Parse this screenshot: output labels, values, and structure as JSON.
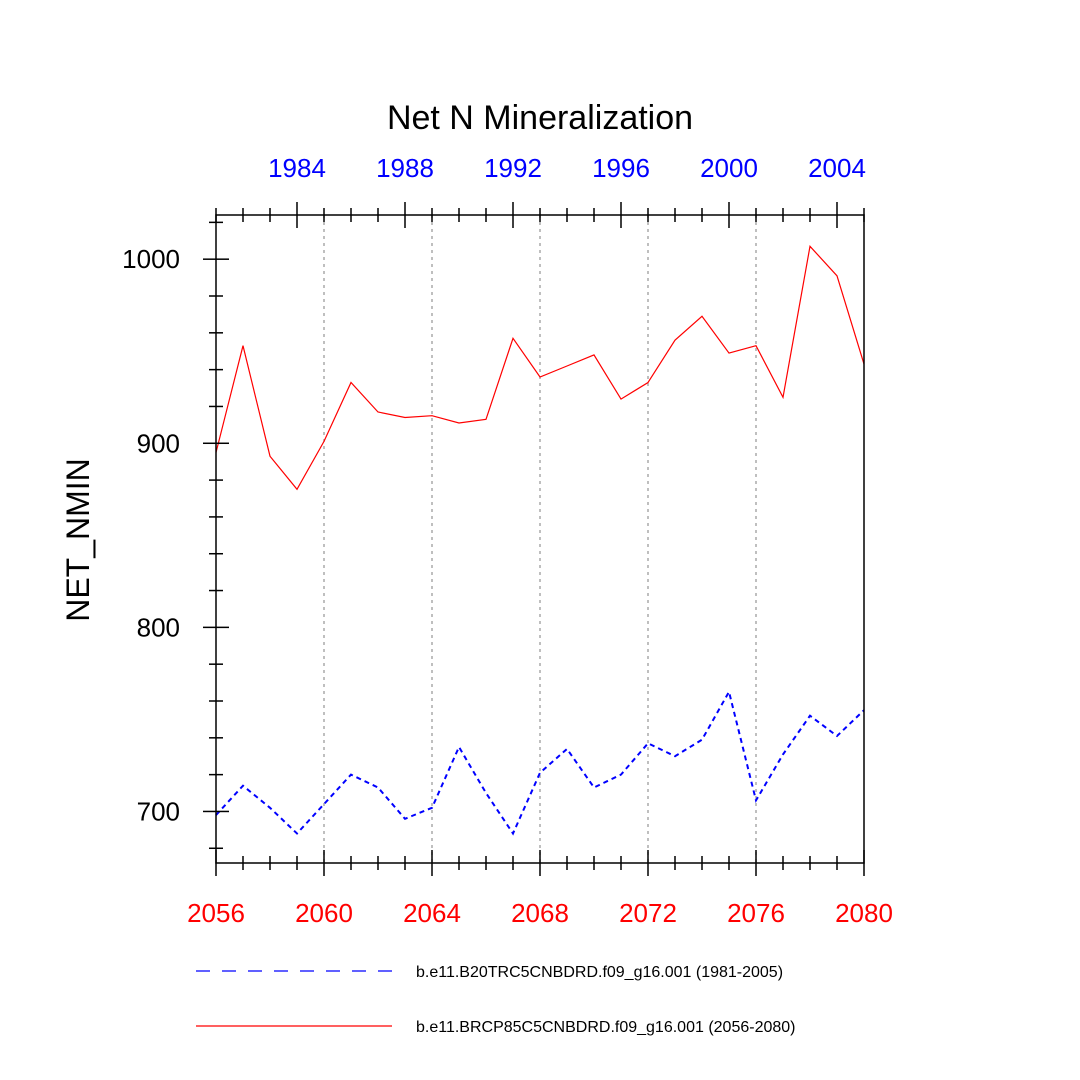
{
  "chart_data": {
    "type": "line",
    "title": "Net N Mineralization",
    "ylabel": "NET_NMIN",
    "ylim": [
      672,
      1024
    ],
    "yticks": [
      700,
      800,
      900,
      1000
    ],
    "x_bottom": {
      "range": [
        2056,
        2080
      ],
      "ticks": [
        2056,
        2060,
        2064,
        2068,
        2072,
        2076,
        2080
      ],
      "color": "#ff0000"
    },
    "x_top": {
      "range": [
        1981,
        2005
      ],
      "ticks": [
        1984,
        1988,
        1992,
        1996,
        2000,
        2004
      ],
      "color": "#0000ff"
    },
    "vertical_gridlines_at": [
      2060,
      2064,
      2068,
      2072,
      2076
    ],
    "series": [
      {
        "name": "b.e11.B20TRC5CNBDRD.f09_g16.001 (1981-2005)",
        "axis": "top",
        "color": "#0000ff",
        "style": "dashed",
        "x": [
          1981,
          1982,
          1983,
          1984,
          1985,
          1986,
          1987,
          1988,
          1989,
          1990,
          1991,
          1992,
          1993,
          1994,
          1995,
          1996,
          1997,
          1998,
          1999,
          2000,
          2001,
          2002,
          2003,
          2004,
          2005
        ],
        "values": [
          698,
          714,
          702,
          688,
          704,
          720,
          713,
          696,
          702,
          735,
          710,
          688,
          721,
          734,
          713,
          720,
          737,
          730,
          739,
          765,
          706,
          731,
          752,
          741,
          755
        ]
      },
      {
        "name": "b.e11.BRCP85C5CNBDRD.f09_g16.001 (2056-2080)",
        "axis": "bottom",
        "color": "#ff0000",
        "style": "solid",
        "x": [
          2056,
          2057,
          2058,
          2059,
          2060,
          2061,
          2062,
          2063,
          2064,
          2065,
          2066,
          2067,
          2068,
          2069,
          2070,
          2071,
          2072,
          2073,
          2074,
          2075,
          2076,
          2077,
          2078,
          2079,
          2080
        ],
        "values": [
          895,
          953,
          893,
          875,
          901,
          933,
          917,
          914,
          915,
          911,
          913,
          957,
          936,
          942,
          948,
          924,
          933,
          956,
          969,
          949,
          953,
          925,
          1007,
          991,
          943
        ]
      }
    ],
    "legend_position": "bottom"
  }
}
